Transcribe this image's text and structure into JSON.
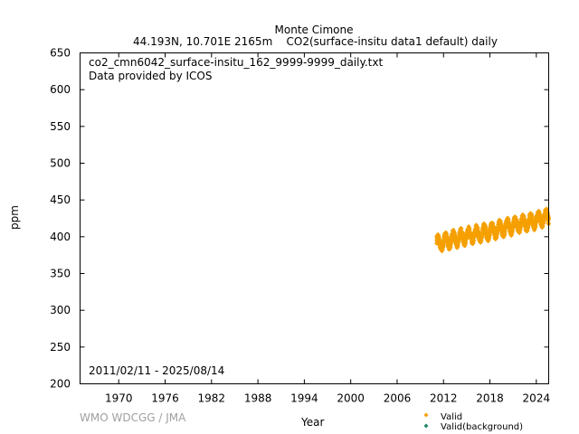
{
  "header": {
    "station": "Monte Cimone",
    "location": "44.193N, 10.701E 2165m",
    "dataset": "CO2(surface-insitu data1 default) daily"
  },
  "annotations": {
    "filename": "co2_cmn6042_surface-insitu_162_9999-9999_daily.txt",
    "provider": "Data provided by ICOS",
    "date_range": "2011/02/11 - 2025/08/14"
  },
  "footer": {
    "credit": "WMO WDCGG / JMA"
  },
  "colors": {
    "valid": "#f5a000",
    "background": "#1f8a6a",
    "credit": "#a0a0a0"
  },
  "chart_data": {
    "type": "scatter",
    "xlabel": "Year",
    "ylabel": "ppm",
    "xlim": [
      1965.0,
      2025.6
    ],
    "ylim": [
      200,
      650
    ],
    "x_ticks": [
      1970,
      1976,
      1982,
      1988,
      1994,
      2000,
      2006,
      2012,
      2018,
      2024
    ],
    "y_ticks": [
      200,
      250,
      300,
      350,
      400,
      450,
      500,
      550,
      600,
      650
    ],
    "grid": false,
    "legend_position": "bottom-right",
    "series": [
      {
        "name": "Valid",
        "color": "#f5a000",
        "marker": "diamond",
        "x_range": [
          2011.11,
          2025.62
        ],
        "trend": {
          "x": [
            2011.5,
            2013,
            2015,
            2017,
            2019,
            2021,
            2023,
            2025.4
          ],
          "y": [
            391,
            396,
            401,
            405,
            410,
            415,
            420,
            426
          ]
        },
        "seasonal_amplitude": 8
      },
      {
        "name": "Valid(background)",
        "color": "#1f8a6a",
        "marker": "diamond",
        "points": []
      }
    ]
  }
}
